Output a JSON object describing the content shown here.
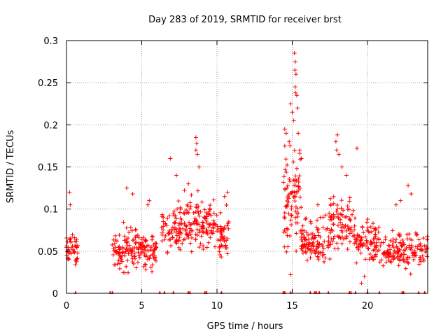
{
  "colors": {
    "series": "#ff0000",
    "frame": "#000000",
    "grid": "#a0a0a0",
    "background": "#ffffff"
  },
  "chart_data": {
    "type": "scatter",
    "title": "Day 283 of 2019, SRMTID for receiver brst",
    "xlabel": "GPS time / hours",
    "ylabel": "SRMTID / TECUs",
    "xlim": [
      0,
      24
    ],
    "ylim": [
      0,
      0.3
    ],
    "xticks": [
      0,
      5,
      10,
      15,
      20
    ],
    "xtick_labels": [
      "0",
      "5",
      "10",
      "15",
      "20"
    ],
    "yticks": [
      0,
      0.05,
      0.1,
      0.15,
      0.2,
      0.25,
      0.3
    ],
    "ytick_labels": [
      "0",
      "0.05",
      "0.1",
      "0.15",
      "0.2",
      "0.25",
      "0.3"
    ],
    "grid": true,
    "marker": "+",
    "series": [
      {
        "name": "SRMTID",
        "clusters": [
          {
            "x_range": [
              0.0,
              0.75
            ],
            "center": 0.055,
            "spread": 0.014,
            "count": 45
          },
          {
            "x_range": [
              3.0,
              6.0
            ],
            "center": 0.05,
            "spread": 0.017,
            "count": 170
          },
          {
            "x_range": [
              6.3,
              7.6
            ],
            "center": 0.075,
            "spread": 0.02,
            "count": 70
          },
          {
            "x_range": [
              7.6,
              9.0
            ],
            "center": 0.082,
            "spread": 0.02,
            "count": 75
          },
          {
            "x_range": [
              9.0,
              10.0
            ],
            "center": 0.08,
            "spread": 0.02,
            "count": 60
          },
          {
            "x_range": [
              10.0,
              10.8
            ],
            "center": 0.066,
            "spread": 0.02,
            "count": 45
          },
          {
            "x_range": [
              14.4,
              15.6
            ],
            "center": 0.11,
            "spread": 0.045,
            "count": 90
          },
          {
            "x_range": [
              15.6,
              17.5
            ],
            "center": 0.062,
            "spread": 0.02,
            "count": 110
          },
          {
            "x_range": [
              17.5,
              19.2
            ],
            "center": 0.082,
            "spread": 0.025,
            "count": 90
          },
          {
            "x_range": [
              19.2,
              21.0
            ],
            "center": 0.06,
            "spread": 0.018,
            "count": 90
          },
          {
            "x_range": [
              21.0,
              24.0
            ],
            "center": 0.05,
            "spread": 0.015,
            "count": 150
          }
        ],
        "outliers": [
          {
            "x": 0.2,
            "y": 0.12
          },
          {
            "x": 0.25,
            "y": 0.105
          },
          {
            "x": 4.0,
            "y": 0.125
          },
          {
            "x": 4.4,
            "y": 0.118
          },
          {
            "x": 5.4,
            "y": 0.105
          },
          {
            "x": 5.5,
            "y": 0.11
          },
          {
            "x": 6.9,
            "y": 0.16
          },
          {
            "x": 7.3,
            "y": 0.14
          },
          {
            "x": 8.1,
            "y": 0.13
          },
          {
            "x": 8.6,
            "y": 0.185
          },
          {
            "x": 8.65,
            "y": 0.178
          },
          {
            "x": 8.6,
            "y": 0.17
          },
          {
            "x": 8.7,
            "y": 0.165
          },
          {
            "x": 8.8,
            "y": 0.15
          },
          {
            "x": 10.7,
            "y": 0.12
          },
          {
            "x": 10.5,
            "y": 0.115
          },
          {
            "x": 14.5,
            "y": 0.195
          },
          {
            "x": 14.6,
            "y": 0.19
          },
          {
            "x": 14.9,
            "y": 0.225
          },
          {
            "x": 15.0,
            "y": 0.215
          },
          {
            "x": 15.15,
            "y": 0.285
          },
          {
            "x": 15.2,
            "y": 0.275
          },
          {
            "x": 15.18,
            "y": 0.265
          },
          {
            "x": 15.25,
            "y": 0.26
          },
          {
            "x": 15.2,
            "y": 0.245
          },
          {
            "x": 15.22,
            "y": 0.238
          },
          {
            "x": 15.3,
            "y": 0.235
          },
          {
            "x": 15.35,
            "y": 0.22
          },
          {
            "x": 15.1,
            "y": 0.205
          },
          {
            "x": 15.4,
            "y": 0.19
          },
          {
            "x": 14.8,
            "y": 0.18
          },
          {
            "x": 15.5,
            "y": 0.17
          },
          {
            "x": 15.6,
            "y": 0.16
          },
          {
            "x": 14.9,
            "y": 0.022
          },
          {
            "x": 16.7,
            "y": 0.105
          },
          {
            "x": 18.0,
            "y": 0.188
          },
          {
            "x": 17.9,
            "y": 0.18
          },
          {
            "x": 17.95,
            "y": 0.17
          },
          {
            "x": 18.1,
            "y": 0.165
          },
          {
            "x": 18.3,
            "y": 0.15
          },
          {
            "x": 18.6,
            "y": 0.14
          },
          {
            "x": 19.3,
            "y": 0.172
          },
          {
            "x": 19.6,
            "y": 0.012
          },
          {
            "x": 19.8,
            "y": 0.02
          },
          {
            "x": 22.7,
            "y": 0.128
          },
          {
            "x": 22.9,
            "y": 0.118
          },
          {
            "x": 22.2,
            "y": 0.11
          },
          {
            "x": 21.9,
            "y": 0.105
          }
        ],
        "zero_marks_x": [
          0.6,
          2.9,
          3.05,
          6.2,
          6.5,
          7.1,
          8.1,
          8.2,
          9.2,
          9.3,
          10.3,
          14.4,
          14.5,
          14.9,
          16.2,
          16.5,
          16.6,
          16.8,
          17.4,
          18.8,
          18.9,
          19.2,
          20.0,
          20.8,
          22.3,
          22.4,
          23.4,
          23.8
        ]
      }
    ]
  }
}
